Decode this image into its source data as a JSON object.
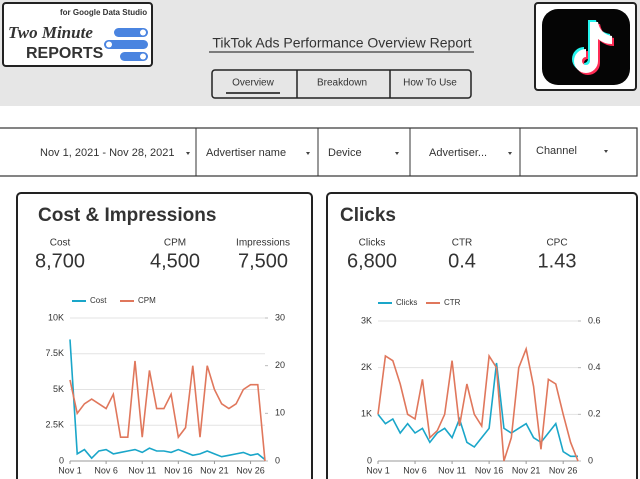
{
  "header": {
    "brand_tagline": "for Google Data Studio",
    "brand_line1": "Two Minute",
    "brand_line2": "REPORTS",
    "title": "TikTok Ads Performance Overview Report",
    "tabs": [
      "Overview",
      "Breakdown",
      "How To Use"
    ]
  },
  "filters": [
    "Nov 1, 2021 - Nov 28, 2021",
    "Advertiser name",
    "Device",
    "Advertiser...",
    "Channel"
  ],
  "cards": [
    {
      "title": "Cost & Impressions",
      "scorecards": [
        {
          "label": "Cost",
          "value": "8,700"
        },
        {
          "label": "CPM",
          "value": "4,500"
        },
        {
          "label": "Impressions",
          "value": "7,500"
        }
      ]
    },
    {
      "title": "Clicks",
      "scorecards": [
        {
          "label": "Clicks",
          "value": "6,800"
        },
        {
          "label": "CTR",
          "value": "0.4"
        },
        {
          "label": "CPC",
          "value": "1.43"
        }
      ]
    }
  ],
  "chart_data": [
    {
      "type": "line",
      "categories": [
        "Nov 1",
        null,
        null,
        null,
        null,
        "Nov 6",
        null,
        null,
        null,
        null,
        "Nov 11",
        null,
        null,
        null,
        null,
        "Nov 16",
        null,
        null,
        null,
        null,
        "Nov 21",
        null,
        null,
        null,
        null,
        "Nov 26",
        null,
        null
      ],
      "series": [
        {
          "name": "Cost",
          "color": "#1aa6c9",
          "values": [
            8500,
            500,
            800,
            200,
            700,
            800,
            500,
            600,
            700,
            800,
            600,
            900,
            700,
            700,
            600,
            800,
            600,
            400,
            500,
            700,
            500,
            300,
            400,
            500,
            600,
            400,
            500,
            100
          ]
        },
        {
          "name": "CPM",
          "color": "#e0775c",
          "axis": "y2",
          "values": [
            17,
            10,
            12,
            13,
            12,
            11,
            14,
            5,
            5,
            21,
            5,
            19,
            11,
            11,
            14,
            5,
            7,
            20,
            5,
            20,
            15,
            12,
            11,
            12,
            15,
            16,
            16,
            0
          ]
        }
      ],
      "ylim": [
        0,
        10000
      ],
      "yticks": [
        0,
        {
          "value": 2500,
          "label": "2.5K"
        },
        {
          "value": 5000,
          "label": "5K"
        },
        {
          "value": 7500,
          "label": "7.5K"
        },
        {
          "value": 10000,
          "label": "10K"
        }
      ],
      "y2lim": [
        0,
        30
      ],
      "y2ticks": [
        0,
        10,
        20,
        30
      ],
      "grid": true
    },
    {
      "type": "line",
      "categories": [
        "Nov 1",
        null,
        null,
        null,
        null,
        "Nov 6",
        null,
        null,
        null,
        null,
        "Nov 11",
        null,
        null,
        null,
        null,
        "Nov 16",
        null,
        null,
        null,
        null,
        "Nov 21",
        null,
        null,
        null,
        null,
        "Nov 26",
        null,
        null
      ],
      "series": [
        {
          "name": "Clicks",
          "color": "#1aa6c9",
          "values": [
            1000,
            800,
            900,
            600,
            800,
            600,
            700,
            400,
            600,
            700,
            500,
            900,
            400,
            300,
            500,
            700,
            2100,
            700,
            600,
            700,
            800,
            500,
            400,
            600,
            800,
            200,
            100,
            100
          ]
        },
        {
          "name": "CTR",
          "color": "#e0775c",
          "axis": "y2",
          "values": [
            0.2,
            0.45,
            0.43,
            0.33,
            0.2,
            0.18,
            0.35,
            0.1,
            0.13,
            0.2,
            0.43,
            0.15,
            0.33,
            0.2,
            0.15,
            0.45,
            0.4,
            0,
            0.1,
            0.4,
            0.48,
            0.32,
            0.05,
            0.35,
            0.33,
            0.2,
            0.08,
            0
          ]
        }
      ],
      "ylim": [
        0,
        3000
      ],
      "yticks": [
        0,
        {
          "value": 1000,
          "label": "1K"
        },
        {
          "value": 2000,
          "label": "2K"
        },
        {
          "value": 3000,
          "label": "3K"
        }
      ],
      "y2lim": [
        0,
        0.6
      ],
      "y2ticks": [
        0,
        0.2,
        0.4,
        0.6
      ],
      "grid": true
    }
  ]
}
